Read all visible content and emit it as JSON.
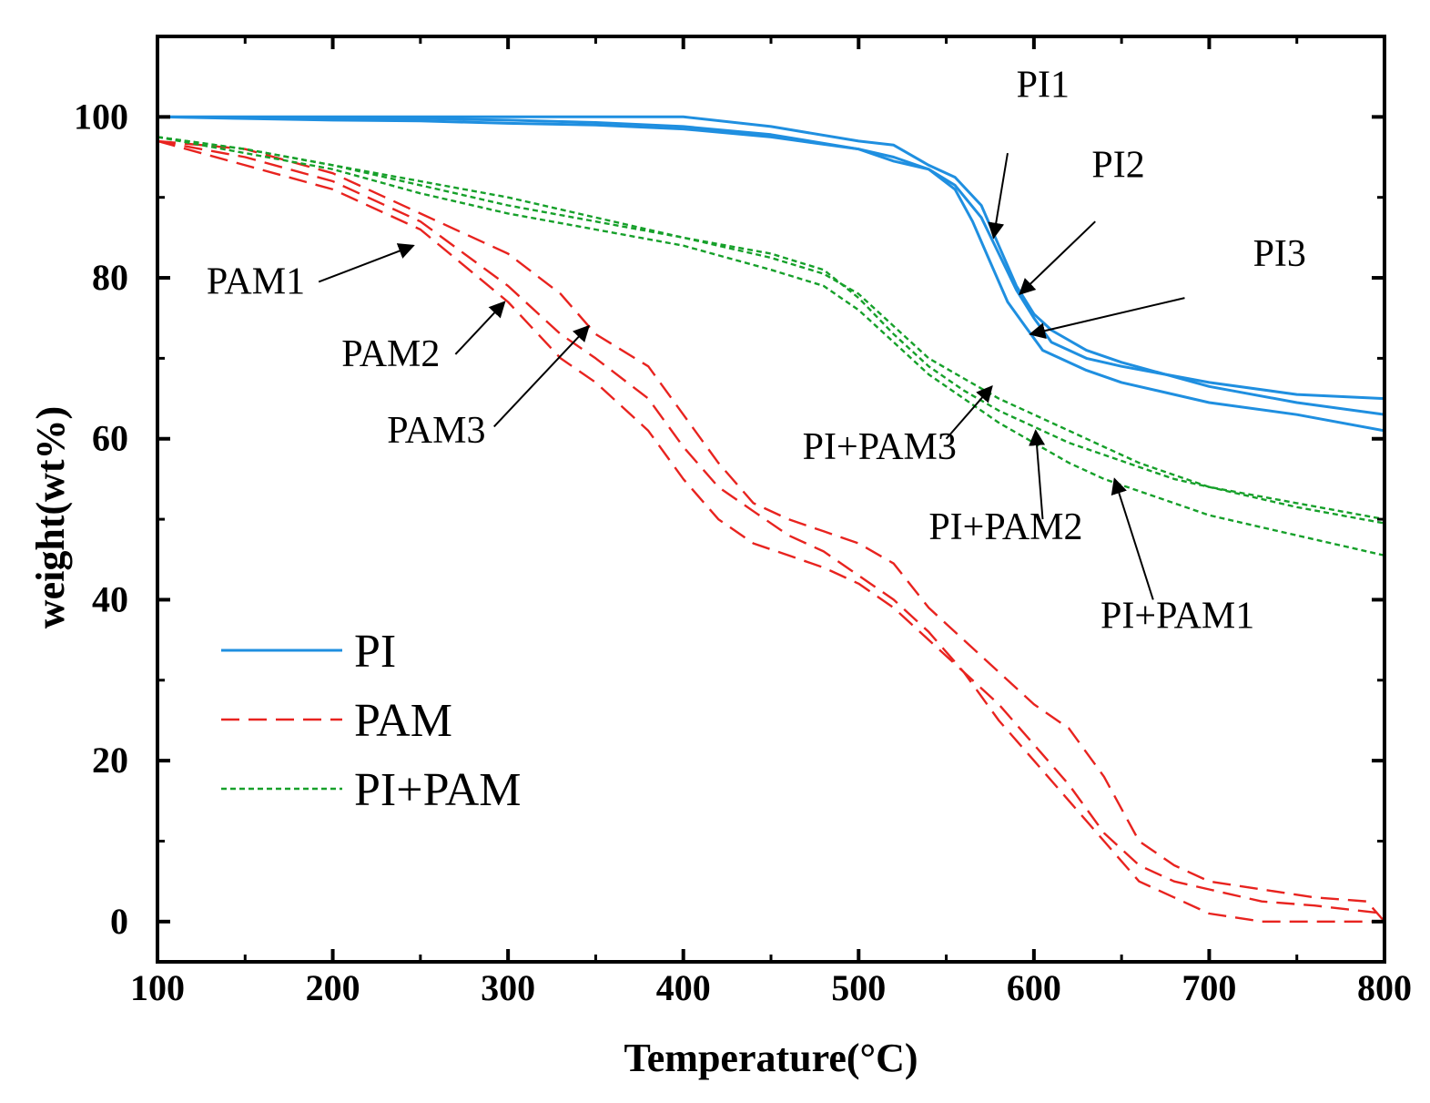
{
  "chart_data": {
    "type": "line",
    "title": "",
    "xlabel": "Temperature(°C)",
    "ylabel": "weight(wt%)",
    "xlim": [
      100,
      800
    ],
    "ylim": [
      -5,
      110
    ],
    "xticks": [
      100,
      200,
      300,
      400,
      500,
      600,
      700,
      800
    ],
    "yticks": [
      0,
      20,
      40,
      60,
      80,
      100
    ],
    "grid": false,
    "legend": {
      "position": "lower-left",
      "entries": [
        {
          "label": "PI",
          "color": "#1f8fe0",
          "style": "solid"
        },
        {
          "label": "PAM",
          "color": "#e8231f",
          "style": "dashed"
        },
        {
          "label": "PI+PAM",
          "color": "#16a02a",
          "style": "dotted"
        }
      ]
    },
    "series": [
      {
        "name": "PI1",
        "group": "PI",
        "color": "#1f8fe0",
        "style": "solid",
        "x": [
          100,
          150,
          200,
          250,
          300,
          350,
          400,
          450,
          500,
          520,
          540,
          555,
          570,
          580,
          590,
          600,
          610,
          630,
          650,
          700,
          750,
          800
        ],
        "y": [
          100,
          99.9,
          99.9,
          99.8,
          99.6,
          99.3,
          98.8,
          97.8,
          96.0,
          95.0,
          93.5,
          91.5,
          87.5,
          83.0,
          78.5,
          75.0,
          72.0,
          70.0,
          69.0,
          67.0,
          65.5,
          65.0
        ]
      },
      {
        "name": "PI2",
        "group": "PI",
        "color": "#1f8fe0",
        "style": "solid",
        "x": [
          100,
          150,
          200,
          250,
          300,
          350,
          400,
          450,
          500,
          520,
          540,
          555,
          570,
          580,
          590,
          600,
          610,
          630,
          650,
          700,
          750,
          800
        ],
        "y": [
          100,
          100,
          100,
          100,
          100,
          100,
          100,
          98.8,
          97.0,
          96.5,
          94.0,
          92.5,
          89.0,
          84.0,
          79.0,
          75.5,
          73.5,
          71.0,
          69.5,
          66.5,
          64.5,
          63.0
        ]
      },
      {
        "name": "PI3",
        "group": "PI",
        "color": "#1f8fe0",
        "style": "solid",
        "x": [
          100,
          150,
          200,
          250,
          300,
          350,
          400,
          450,
          500,
          520,
          540,
          555,
          565,
          575,
          585,
          595,
          605,
          630,
          650,
          700,
          750,
          800
        ],
        "y": [
          100,
          99.8,
          99.6,
          99.5,
          99.2,
          99.0,
          98.5,
          97.5,
          96.0,
          94.5,
          93.5,
          91.0,
          87.0,
          82.0,
          77.0,
          74.0,
          71.0,
          68.5,
          67.0,
          64.5,
          63.0,
          61.0
        ]
      },
      {
        "name": "PAM1",
        "group": "PAM",
        "color": "#e8231f",
        "style": "dashed",
        "x": [
          100,
          150,
          200,
          250,
          300,
          330,
          350,
          380,
          400,
          420,
          440,
          460,
          480,
          500,
          520,
          540,
          560,
          580,
          600,
          620,
          640,
          660,
          680,
          700,
          730,
          760,
          800
        ],
        "y": [
          97,
          94,
          91,
          86,
          77,
          70,
          67,
          61,
          55,
          50,
          47,
          45.5,
          44,
          42,
          39,
          35,
          31,
          25,
          20,
          15,
          10,
          5,
          3,
          1,
          0,
          0,
          0
        ]
      },
      {
        "name": "PAM2",
        "group": "PAM",
        "color": "#e8231f",
        "style": "dashed",
        "x": [
          100,
          150,
          200,
          250,
          300,
          330,
          350,
          380,
          400,
          420,
          440,
          460,
          480,
          500,
          520,
          540,
          560,
          580,
          600,
          620,
          640,
          660,
          680,
          700,
          730,
          760,
          800
        ],
        "y": [
          97,
          95,
          92,
          87,
          79,
          73,
          70,
          65,
          59,
          54,
          51,
          48,
          46,
          43,
          40,
          36,
          31,
          27,
          22,
          17,
          11,
          7,
          5,
          4,
          2.5,
          2,
          1
        ]
      },
      {
        "name": "PAM3",
        "group": "PAM",
        "color": "#e8231f",
        "style": "dashed",
        "x": [
          100,
          150,
          200,
          250,
          300,
          330,
          350,
          380,
          400,
          420,
          440,
          460,
          480,
          500,
          520,
          540,
          560,
          580,
          600,
          620,
          640,
          660,
          680,
          700,
          730,
          760,
          790,
          800
        ],
        "y": [
          97,
          96,
          93,
          88,
          83,
          78,
          73,
          69,
          63,
          57,
          52,
          50,
          48.5,
          47,
          44.5,
          39,
          35,
          31,
          27,
          24,
          18,
          10,
          7,
          5,
          4,
          3,
          2.5,
          0
        ]
      },
      {
        "name": "PI+PAM1",
        "group": "PI+PAM",
        "color": "#16a02a",
        "style": "dotted",
        "x": [
          100,
          150,
          200,
          250,
          300,
          350,
          400,
          450,
          480,
          500,
          520,
          540,
          560,
          580,
          600,
          620,
          640,
          660,
          680,
          700,
          750,
          800
        ],
        "y": [
          97.5,
          95.5,
          93.5,
          90.5,
          88,
          86,
          84,
          81,
          79,
          76,
          72,
          68,
          65,
          62,
          59.5,
          57,
          55,
          53.5,
          52,
          50.5,
          48,
          45.5
        ]
      },
      {
        "name": "PI+PAM2",
        "group": "PI+PAM",
        "color": "#16a02a",
        "style": "dotted",
        "x": [
          100,
          150,
          200,
          250,
          300,
          350,
          400,
          450,
          480,
          500,
          520,
          540,
          560,
          580,
          600,
          620,
          640,
          660,
          680,
          700,
          750,
          800
        ],
        "y": [
          97.5,
          96,
          94,
          91.5,
          89,
          87,
          85,
          83,
          81,
          77.5,
          73,
          69,
          66,
          63.5,
          61.5,
          59.5,
          58,
          56.5,
          55,
          54,
          51.5,
          49.5
        ]
      },
      {
        "name": "PI+PAM3",
        "group": "PI+PAM",
        "color": "#16a02a",
        "style": "dotted",
        "x": [
          100,
          150,
          200,
          250,
          300,
          350,
          400,
          450,
          480,
          500,
          520,
          540,
          560,
          580,
          600,
          620,
          640,
          660,
          680,
          700,
          750,
          800
        ],
        "y": [
          97.5,
          96,
          94,
          92,
          90,
          87.5,
          85,
          82.5,
          80.5,
          78,
          74,
          70,
          67.5,
          65,
          63,
          61,
          59,
          57,
          55.5,
          54,
          52,
          50
        ]
      }
    ],
    "annotations": [
      {
        "text": "PI1",
        "label_x": 590,
        "label_y": 102.5,
        "arrow_from": [
          585,
          95.5
        ],
        "arrow_to": [
          577,
          85
        ]
      },
      {
        "text": "PI2",
        "label_x": 633,
        "label_y": 92.5,
        "arrow_from": [
          635,
          87
        ],
        "arrow_to": [
          592,
          78
        ]
      },
      {
        "text": "PI3",
        "label_x": 725,
        "label_y": 81.5,
        "arrow_from": [
          686,
          77.5
        ],
        "arrow_to": [
          598,
          73
        ]
      },
      {
        "text": "PAM1",
        "label_x": 128,
        "label_y": 78,
        "arrow_from": [
          192,
          79.5
        ],
        "arrow_to": [
          246,
          84
        ]
      },
      {
        "text": "PAM2",
        "label_x": 205,
        "label_y": 69,
        "arrow_from": [
          270,
          70.5
        ],
        "arrow_to": [
          298,
          77
        ]
      },
      {
        "text": "PAM3",
        "label_x": 231,
        "label_y": 59.5,
        "arrow_from": [
          292,
          61.5
        ],
        "arrow_to": [
          346,
          74
        ]
      },
      {
        "text": "PI+PAM3",
        "label_x": 468,
        "label_y": 57.5,
        "arrow_from": [
          550,
          60
        ],
        "arrow_to": [
          576,
          66.5
        ]
      },
      {
        "text": "PI+PAM2",
        "label_x": 540,
        "label_y": 47.5,
        "arrow_from": [
          605,
          50
        ],
        "arrow_to": [
          601,
          61
        ]
      },
      {
        "text": "PI+PAM1",
        "label_x": 638,
        "label_y": 36.5,
        "arrow_from": [
          668,
          40
        ],
        "arrow_to": [
          646,
          55
        ]
      }
    ]
  }
}
